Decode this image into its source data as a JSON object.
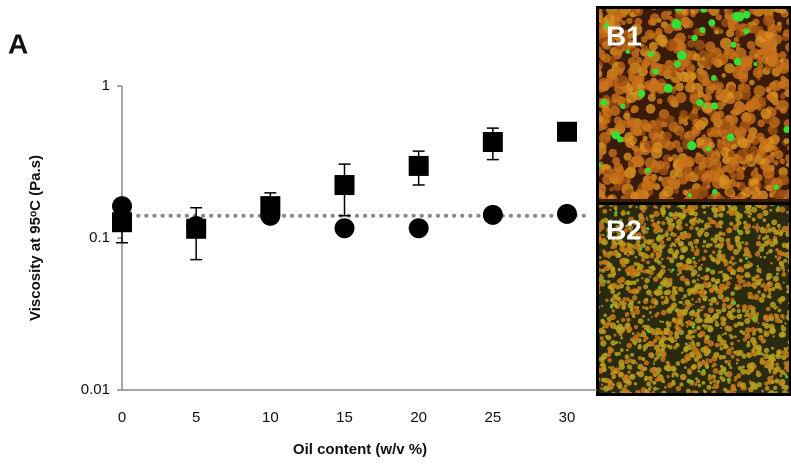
{
  "chart_data": {
    "type": "scatter",
    "panel_label": "A",
    "xlabel": "Oil content (w/v %)",
    "ylabel": "Viscosity at 95ᵒC (Pa.s)",
    "x": [
      0,
      5,
      10,
      15,
      20,
      25,
      30
    ],
    "series": [
      {
        "marker": "square",
        "color": "#000000",
        "values": [
          0.127,
          0.115,
          0.162,
          0.223,
          0.298,
          0.428,
          0.5
        ],
        "errors": [
          0.034,
          0.043,
          0.036,
          0.083,
          0.075,
          0.1,
          null
        ]
      },
      {
        "marker": "circle",
        "color": "#000000",
        "values": [
          0.162,
          0.12,
          0.14,
          0.116,
          0.116,
          0.142,
          0.144
        ]
      }
    ],
    "reference_line": 0.14,
    "log_y": true,
    "xlim": [
      0,
      30
    ],
    "xticks": [
      0,
      5,
      10,
      15,
      20,
      25,
      30
    ],
    "ylim": [
      0.01,
      1
    ],
    "yticks": [
      0.01,
      0.1,
      1
    ],
    "images": [
      {
        "label": "B1"
      },
      {
        "label": "B2"
      }
    ]
  }
}
